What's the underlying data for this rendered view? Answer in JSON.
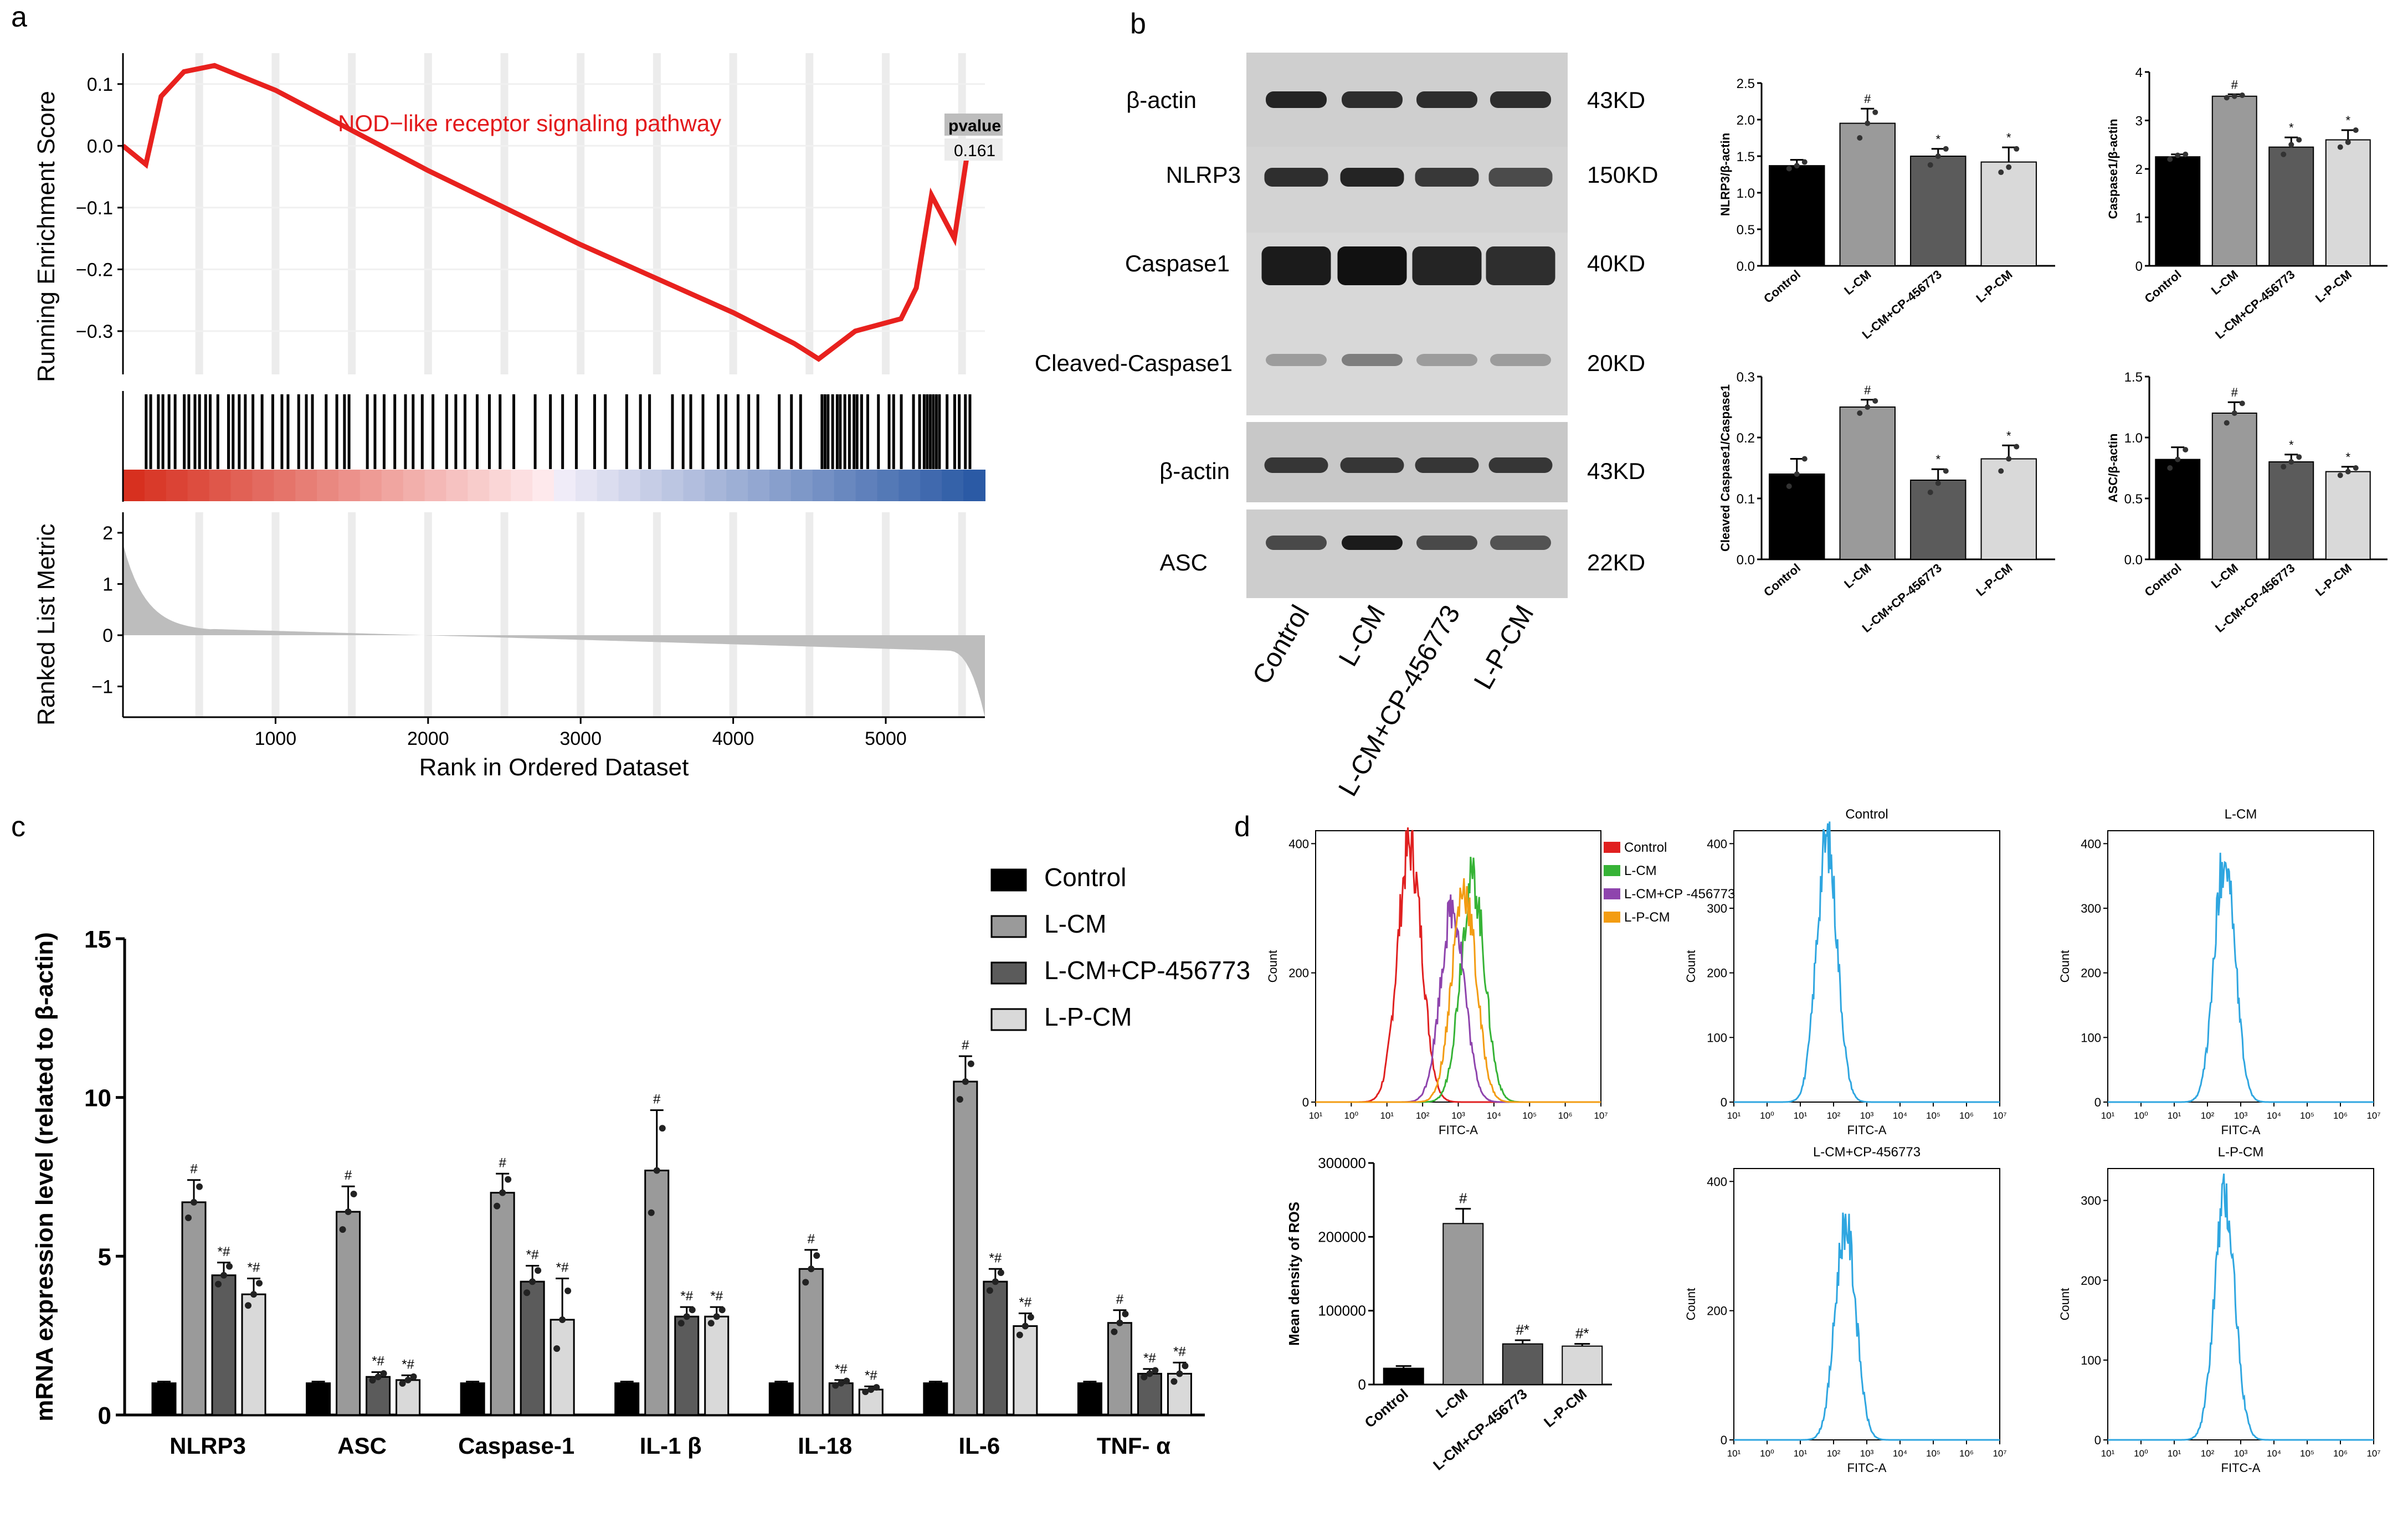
{
  "panel_labels": [
    "a",
    "b",
    "c",
    "d"
  ],
  "colors": {
    "accent_red": "#e31a1c",
    "gsea_red": "#e8211e",
    "heat_red": "#d7301f",
    "heat_blue": "#2b5aa5",
    "flow_blue": "#2fa6e0",
    "flow_red": "#e02020",
    "flow_green": "#36b336",
    "flow_purple": "#8e44ad",
    "flow_orange": "#f39c12",
    "bar_black": "#000000",
    "bar_gray": "#9a9a9a",
    "bar_dark": "#5b5b5b",
    "bar_light": "#d9d9d9"
  },
  "chart_data": [
    {
      "id": "gsea",
      "type": "line",
      "title": "NOD−like receptor signaling pathway",
      "ylabel": "Running Enrichment Score",
      "ylabel2": "Ranked List Metric",
      "xlabel": "Rank in Ordered Dataset",
      "xlim": [
        0,
        5650
      ],
      "ylim": [
        -0.37,
        0.15
      ],
      "ylim2": [
        -1.6,
        2.4
      ],
      "yticks": [
        "0.1",
        "0.0",
        "−0.1",
        "−0.2",
        "−0.3"
      ],
      "yticks2": [
        "2",
        "1",
        "0",
        "−1"
      ],
      "xticks": [
        "1000",
        "2000",
        "3000",
        "4000",
        "5000"
      ],
      "pvalue_label": "pvalue",
      "pvalue": "0.161",
      "curve": [
        [
          0,
          -0.0
        ],
        [
          150,
          -0.03
        ],
        [
          250,
          0.08
        ],
        [
          400,
          0.12
        ],
        [
          600,
          0.13
        ],
        [
          800,
          0.11
        ],
        [
          1000,
          0.09
        ],
        [
          2000,
          -0.04
        ],
        [
          3000,
          -0.16
        ],
        [
          4000,
          -0.27
        ],
        [
          4400,
          -0.32
        ],
        [
          4560,
          -0.345
        ],
        [
          4800,
          -0.3
        ],
        [
          5100,
          -0.28
        ],
        [
          5200,
          -0.23
        ],
        [
          5300,
          -0.08
        ],
        [
          5450,
          -0.15
        ],
        [
          5530,
          -0.02
        ],
        [
          5600,
          0.0
        ]
      ],
      "hit_ranks": [
        150,
        180,
        230,
        260,
        300,
        340,
        400,
        430,
        470,
        500,
        540,
        570,
        620,
        690,
        720,
        760,
        800,
        850,
        910,
        980,
        1040,
        1080,
        1150,
        1200,
        1240,
        1330,
        1400,
        1450,
        1480,
        1600,
        1650,
        1710,
        1780,
        1850,
        1900,
        1960,
        2030,
        2120,
        2180,
        2240,
        2320,
        2400,
        2470,
        2560,
        2700,
        2800,
        2880,
        2970,
        3090,
        3160,
        3300,
        3390,
        3450,
        3600,
        3670,
        3720,
        3800,
        3900,
        3950,
        4030,
        4100,
        4160,
        4300,
        4380,
        4440,
        4580,
        4600,
        4620,
        4650,
        4680,
        4700,
        4730,
        4760,
        4790,
        4810,
        4840,
        4880,
        4950,
        5020,
        5050,
        5100,
        5180,
        5220,
        5250,
        5270,
        5290,
        5310,
        5330,
        5350,
        5400,
        5450,
        5480,
        5520,
        5550
      ]
    },
    {
      "id": "wb_nlrp3",
      "type": "bar",
      "ylabel": "NLRP3/β-actin",
      "categories": [
        "Control",
        "L-CM",
        "L-CM+CP-456773",
        "L-P-CM"
      ],
      "values": [
        1.37,
        1.95,
        1.5,
        1.42
      ],
      "errors": [
        0.08,
        0.2,
        0.1,
        0.2
      ],
      "marks": [
        "",
        "#",
        "*",
        "*"
      ],
      "ylim": [
        0,
        2.5
      ],
      "yticks": [
        "0.0",
        "0.5",
        "1.0",
        "1.5",
        "2.0",
        "2.5"
      ],
      "points": [
        [
          1.33,
          1.37,
          1.42
        ],
        [
          1.75,
          1.95,
          2.1
        ],
        [
          1.38,
          1.5,
          1.6
        ],
        [
          1.28,
          1.35,
          1.6
        ]
      ]
    },
    {
      "id": "wb_casp1",
      "type": "bar",
      "ylabel": "Caspase1/β-actin",
      "categories": [
        "Control",
        "L-CM",
        "L-CM+CP-456773",
        "L-P-CM"
      ],
      "values": [
        2.25,
        3.5,
        2.45,
        2.6
      ],
      "errors": [
        0.05,
        0.04,
        0.2,
        0.2
      ],
      "marks": [
        "",
        "#",
        "*",
        "*"
      ],
      "ylim": [
        0,
        4
      ],
      "yticks": [
        "0",
        "1",
        "2",
        "3",
        "4"
      ],
      "points": [
        [
          2.2,
          2.28,
          2.3
        ],
        [
          3.47,
          3.5,
          3.52
        ],
        [
          2.3,
          2.5,
          2.6
        ],
        [
          2.45,
          2.55,
          2.8
        ]
      ]
    },
    {
      "id": "wb_cleaved",
      "type": "bar",
      "ylabel": "Cleaved Caspase1/Caspase1",
      "categories": [
        "Control",
        "L-CM",
        "L-CM+CP-456773",
        "L-P-CM"
      ],
      "values": [
        0.14,
        0.25,
        0.13,
        0.165
      ],
      "errors": [
        0.025,
        0.012,
        0.018,
        0.022
      ],
      "marks": [
        "",
        "#",
        "*",
        "*"
      ],
      "ylim": [
        0,
        0.3
      ],
      "yticks": [
        "0.0",
        "0.1",
        "0.2",
        "0.3"
      ],
      "points": [
        [
          0.12,
          0.14,
          0.165
        ],
        [
          0.24,
          0.25,
          0.26
        ],
        [
          0.11,
          0.125,
          0.145
        ],
        [
          0.145,
          0.165,
          0.185
        ]
      ]
    },
    {
      "id": "wb_asc",
      "type": "bar",
      "ylabel": "ASC/β-actin",
      "categories": [
        "Control",
        "L-CM",
        "L-CM+CP-456773",
        "L-P-CM"
      ],
      "values": [
        0.82,
        1.2,
        0.8,
        0.72
      ],
      "errors": [
        0.1,
        0.09,
        0.06,
        0.04
      ],
      "marks": [
        "",
        "#",
        "*",
        "*"
      ],
      "ylim": [
        0,
        1.5
      ],
      "yticks": [
        "0.0",
        "0.5",
        "1.0",
        "1.5"
      ],
      "points": [
        [
          0.75,
          0.82,
          0.9
        ],
        [
          1.12,
          1.2,
          1.28
        ],
        [
          0.76,
          0.8,
          0.84
        ],
        [
          0.69,
          0.72,
          0.75
        ]
      ]
    },
    {
      "id": "mrna",
      "type": "bar",
      "ylabel": "mRNA expression level (related to β-actin)",
      "categories": [
        "NLRP3",
        "ASC",
        "Caspase-1",
        "IL-1 β",
        "IL-18",
        "IL-6",
        "TNF- α"
      ],
      "series": [
        {
          "name": "Control",
          "values": [
            1,
            1,
            1,
            1,
            1,
            1,
            1
          ]
        },
        {
          "name": "L-CM",
          "values": [
            6.7,
            6.4,
            7.0,
            7.7,
            4.6,
            10.5,
            2.9
          ]
        },
        {
          "name": "L-CM+CP-456773",
          "values": [
            4.4,
            1.2,
            4.2,
            3.1,
            1.0,
            4.2,
            1.3
          ]
        },
        {
          "name": "L-P-CM",
          "values": [
            3.8,
            1.1,
            3.0,
            3.1,
            0.8,
            2.8,
            1.3
          ]
        }
      ],
      "errors": [
        [
          0.05,
          0.05,
          0.05,
          0.05,
          0.05,
          0.05,
          0.05
        ],
        [
          0.7,
          0.8,
          0.6,
          1.9,
          0.6,
          0.8,
          0.4
        ],
        [
          0.4,
          0.15,
          0.5,
          0.3,
          0.1,
          0.4,
          0.15
        ],
        [
          0.5,
          0.15,
          1.3,
          0.3,
          0.1,
          0.4,
          0.35
        ]
      ],
      "marks": [
        [
          "",
          "",
          "",
          "",
          "",
          "",
          ""
        ],
        [
          "#",
          "#",
          "#",
          "#",
          "#",
          "#",
          "#"
        ],
        [
          "*#",
          "*#",
          "*#",
          "*#",
          "*#",
          "*#",
          "*#"
        ],
        [
          "*#",
          "*#",
          "*#",
          "*#",
          "*#",
          "*#",
          "*#"
        ]
      ],
      "ylim": [
        0,
        15
      ],
      "yticks": [
        "0",
        "5",
        "10",
        "15"
      ]
    },
    {
      "id": "ros_overlay",
      "type": "line",
      "xlabel": "FITC-A",
      "ylabel": "Count",
      "ylim": [
        0,
        420
      ],
      "yticks": [
        "0",
        "200",
        "400"
      ],
      "legend": [
        "Control",
        "L-CM",
        "L-CM+CP -456773",
        "L-P-CM"
      ],
      "peaks": [
        0.33,
        0.55,
        0.48,
        0.52
      ]
    },
    {
      "id": "ros_density",
      "type": "bar",
      "ylabel": "Mean density of ROS",
      "categories": [
        "Control",
        "L-CM",
        "L-CM+CP-456773",
        "L-P-CM"
      ],
      "values": [
        22000,
        218000,
        55000,
        52000
      ],
      "errors": [
        3000,
        20000,
        5000,
        3000
      ],
      "marks": [
        "",
        "#",
        "#*",
        "#*"
      ],
      "ylim": [
        0,
        300000
      ],
      "yticks": [
        "0",
        "100000",
        "200000",
        "300000"
      ]
    },
    {
      "id": "flow_control",
      "type": "line",
      "title": "Control",
      "xlabel": "FITC-A",
      "ylabel": "Count",
      "ylim": [
        0,
        420
      ],
      "yticks": [
        "0",
        "100",
        "200",
        "300",
        "400"
      ],
      "peak": 0.35
    },
    {
      "id": "flow_lcm",
      "type": "line",
      "title": "L-CM",
      "xlabel": "FITC-A",
      "ylabel": "Count",
      "ylim": [
        0,
        420
      ],
      "yticks": [
        "0",
        "100",
        "200",
        "300",
        "400"
      ],
      "peak": 0.44
    },
    {
      "id": "flow_cp",
      "type": "line",
      "title": "L-CM+CP-456773",
      "xlabel": "FITC-A",
      "ylabel": "Count",
      "ylim": [
        0,
        420
      ],
      "yticks": [
        "0",
        "200",
        "400"
      ],
      "peak": 0.42
    },
    {
      "id": "flow_lpcm",
      "type": "line",
      "title": "L-P-CM",
      "xlabel": "FITC-A",
      "ylabel": "Count",
      "ylim": [
        0,
        340
      ],
      "yticks": [
        "0",
        "100",
        "200",
        "300"
      ],
      "peak": 0.44
    }
  ],
  "flow_xticks": [
    "10¹",
    "10⁰",
    "10¹",
    "10²",
    "10³",
    "10⁴",
    "10⁵",
    "10⁶",
    "10⁷"
  ],
  "western_blot": {
    "left_labels": [
      "β-actin",
      "NLRP3",
      "Caspase1",
      "Cleaved-Caspase1",
      "β-actin",
      "ASC"
    ],
    "right_labels": [
      "43KD",
      "150KD",
      "40KD",
      "20KD",
      "43KD",
      "22KD"
    ],
    "lanes": [
      "Control",
      "L-CM",
      "L-CM+CP-456773",
      "L-P-CM"
    ]
  }
}
